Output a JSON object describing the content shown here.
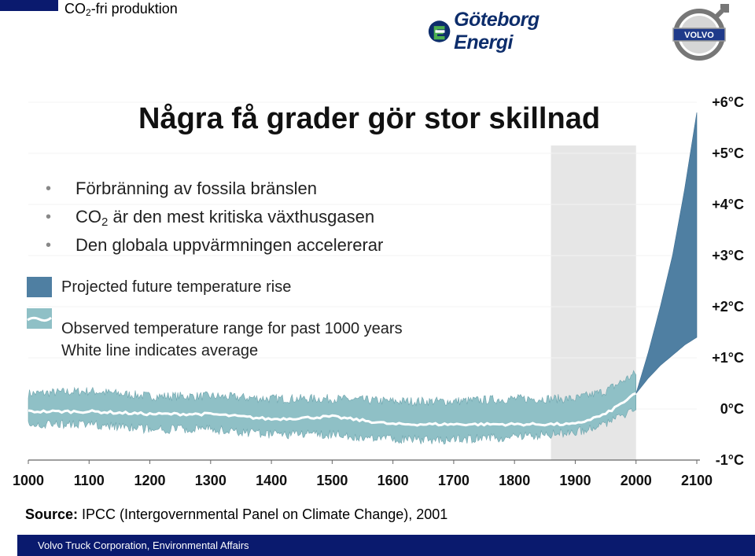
{
  "header": {
    "title_main": "CO",
    "title_sub": "2",
    "title_rest": "-fri produktion",
    "logo_text": "Göteborg Energi",
    "volvo_text": "VOLVO"
  },
  "slide": {
    "title": "Några få grader gör stor skillnad",
    "bullets": [
      {
        "text": "Förbränning av fossila bränslen"
      },
      {
        "pre": "CO",
        "sub": "2",
        "post": " är den mest kritiska växthusgasen"
      },
      {
        "text": "Den globala uppvärmningen accelererar"
      }
    ],
    "legend": {
      "projected": "Projected future temperature rise",
      "observed": "Observed temperature range for past 1000 years",
      "white_line": "White line indicates average"
    },
    "source_bold": "Source:",
    "source_rest": " IPCC (Intergovernmental Panel on Climate Change), 2001",
    "footer": "Volvo Truck Corporation, Environmental Affairs"
  },
  "chart_data": {
    "type": "area",
    "title": "",
    "xlabel": "",
    "ylabel": "",
    "x_ticks": [
      1000,
      1100,
      1200,
      1300,
      1400,
      1500,
      1600,
      1700,
      1800,
      1900,
      2000,
      2100
    ],
    "y_ticks": [
      "+6°C",
      "+5°C",
      "+4°C",
      "+3°C",
      "+2°C",
      "+1°C",
      "0°C",
      "-1°C"
    ],
    "y_tick_values": [
      6,
      5,
      4,
      3,
      2,
      1,
      0,
      -1
    ],
    "xlim": [
      1000,
      2100
    ],
    "ylim": [
      -1,
      6
    ],
    "highlight_band": [
      1860,
      2000
    ],
    "series": [
      {
        "name": "Observed temperature range for past 1000 years",
        "color": "#8fc0c6",
        "x": [
          1000,
          1100,
          1200,
          1300,
          1400,
          1500,
          1600,
          1700,
          1800,
          1900,
          1950,
          2000
        ],
        "low": [
          -0.3,
          -0.3,
          -0.4,
          -0.4,
          -0.5,
          -0.5,
          -0.6,
          -0.6,
          -0.55,
          -0.45,
          -0.3,
          0.0
        ],
        "high": [
          0.3,
          0.35,
          0.25,
          0.25,
          0.2,
          0.2,
          0.15,
          0.15,
          0.2,
          0.2,
          0.35,
          0.7
        ]
      },
      {
        "name": "White line indicates average",
        "color": "#ffffff",
        "x": [
          1000,
          1100,
          1200,
          1300,
          1400,
          1500,
          1600,
          1700,
          1800,
          1900,
          1950,
          2000
        ],
        "values": [
          -0.05,
          -0.05,
          -0.1,
          -0.1,
          -0.2,
          -0.15,
          -0.3,
          -0.3,
          -0.3,
          -0.3,
          -0.1,
          0.3
        ]
      },
      {
        "name": "Projected future temperature rise",
        "color": "#4f7fa2",
        "x": [
          2000,
          2020,
          2040,
          2060,
          2080,
          2100
        ],
        "low": [
          0.3,
          0.6,
          0.85,
          1.05,
          1.25,
          1.4
        ],
        "high": [
          0.3,
          1.1,
          2.0,
          3.0,
          4.3,
          5.8
        ]
      }
    ]
  }
}
